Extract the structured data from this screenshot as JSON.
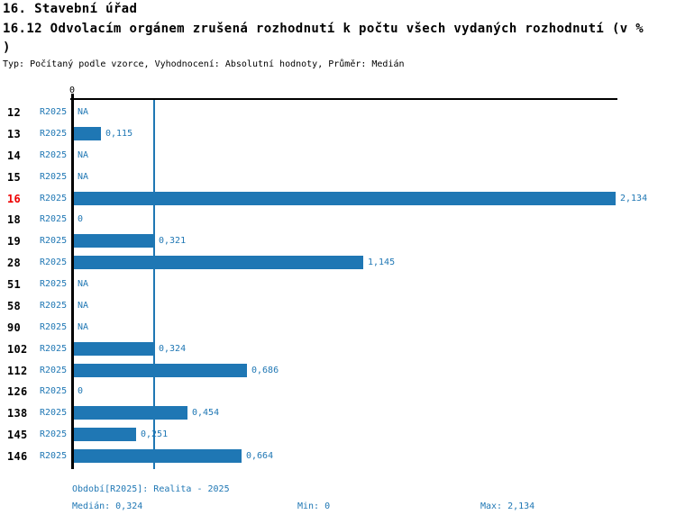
{
  "header": {
    "title": "16. Stavební úřad",
    "subtitle_line1": "16.12 Odvolacím orgánem zrušená rozhodnutí k počtu všech vydaných rozhodnutí (v %",
    "subtitle_line2": ")",
    "meta": "Typ: Počítaný podle vzorce, Vyhodnocení: Absolutní hodnoty, Průměr: Medián"
  },
  "chart_data": {
    "type": "bar",
    "orientation": "horizontal",
    "title": "16.12 Odvolacím orgánem zrušená rozhodnutí k počtu všech vydaných rozhodnutí (v %)",
    "series_name": "R2025",
    "axis": {
      "zero_tick_label": "0",
      "min": 0,
      "max": 2.134,
      "grid": false
    },
    "median_value": 0.324,
    "stats": {
      "median": 0.324,
      "min": 0,
      "max": 2.134
    },
    "highlighted_row_id": "16",
    "rows": [
      {
        "id": "12",
        "series": "R2025",
        "value": null,
        "display": "NA",
        "highlighted": false
      },
      {
        "id": "13",
        "series": "R2025",
        "value": 0.115,
        "display": "0,115",
        "highlighted": false
      },
      {
        "id": "14",
        "series": "R2025",
        "value": null,
        "display": "NA",
        "highlighted": false
      },
      {
        "id": "15",
        "series": "R2025",
        "value": null,
        "display": "NA",
        "highlighted": false
      },
      {
        "id": "16",
        "series": "R2025",
        "value": 2.134,
        "display": "2,134",
        "highlighted": true
      },
      {
        "id": "18",
        "series": "R2025",
        "value": 0,
        "display": "0",
        "highlighted": false
      },
      {
        "id": "19",
        "series": "R2025",
        "value": 0.321,
        "display": "0,321",
        "highlighted": false
      },
      {
        "id": "28",
        "series": "R2025",
        "value": 1.145,
        "display": "1,145",
        "highlighted": false
      },
      {
        "id": "51",
        "series": "R2025",
        "value": null,
        "display": "NA",
        "highlighted": false
      },
      {
        "id": "58",
        "series": "R2025",
        "value": null,
        "display": "NA",
        "highlighted": false
      },
      {
        "id": "90",
        "series": "R2025",
        "value": null,
        "display": "NA",
        "highlighted": false
      },
      {
        "id": "102",
        "series": "R2025",
        "value": 0.324,
        "display": "0,324",
        "highlighted": false
      },
      {
        "id": "112",
        "series": "R2025",
        "value": 0.686,
        "display": "0,686",
        "highlighted": false
      },
      {
        "id": "126",
        "series": "R2025",
        "value": 0,
        "display": "0",
        "highlighted": false
      },
      {
        "id": "138",
        "series": "R2025",
        "value": 0.454,
        "display": "0,454",
        "highlighted": false
      },
      {
        "id": "145",
        "series": "R2025",
        "value": 0.251,
        "display": "0,251",
        "highlighted": false
      },
      {
        "id": "146",
        "series": "R2025",
        "value": 0.664,
        "display": "0,664",
        "highlighted": false
      }
    ],
    "colors": {
      "bar": "#1f77b4",
      "median_line": "#1f77b4",
      "blue_text": "#1f77b4",
      "highlight_text": "#ee0000",
      "axis": "#000000"
    }
  },
  "footer": {
    "period": "Období[R2025]: Realita - 2025",
    "median": "Medián: 0,324",
    "min": "Min: 0",
    "max": "Max: 2,134"
  }
}
